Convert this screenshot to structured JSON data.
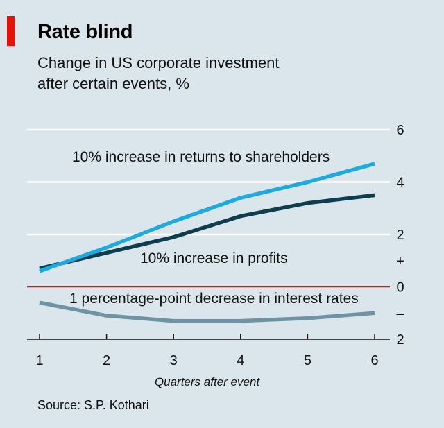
{
  "title": "Rate blind",
  "subtitle_line1": "Change in US corporate investment",
  "subtitle_line2": "after certain events, %",
  "source": "Source: S.P. Kothari",
  "colors": {
    "background": "#dbe6ec",
    "accent": "#e3120b",
    "shareholders": "#1eaadf",
    "profits": "#0e3e4e",
    "interest": "#6f93a4",
    "zero_line": "#e3120b",
    "grid": "#ffffff"
  },
  "chart_data": {
    "type": "line",
    "title": "Rate blind",
    "subtitle": "Change in US corporate investment after certain events, %",
    "xlabel": "Quarters after event",
    "ylabel": "",
    "x": [
      1,
      2,
      3,
      4,
      5,
      6
    ],
    "xlim": [
      1,
      6
    ],
    "ylim": [
      -2,
      6
    ],
    "yticks": [
      6,
      4,
      2,
      0,
      -2
    ],
    "ytick_labels": [
      "6",
      "4",
      "2",
      "0",
      "2"
    ],
    "sign_labels": {
      "plus": "+",
      "minus": "–"
    },
    "grid": true,
    "series": [
      {
        "name": "10% increase in returns to shareholders",
        "values": [
          0.6,
          1.5,
          2.5,
          3.4,
          4.0,
          4.7
        ]
      },
      {
        "name": "10% increase in profits",
        "values": [
          0.7,
          1.3,
          1.9,
          2.7,
          3.2,
          3.5
        ]
      },
      {
        "name": "1 percentage-point decrease in interest rates",
        "values": [
          -0.6,
          -1.1,
          -1.3,
          -1.3,
          -1.2,
          -1.0
        ]
      }
    ]
  }
}
